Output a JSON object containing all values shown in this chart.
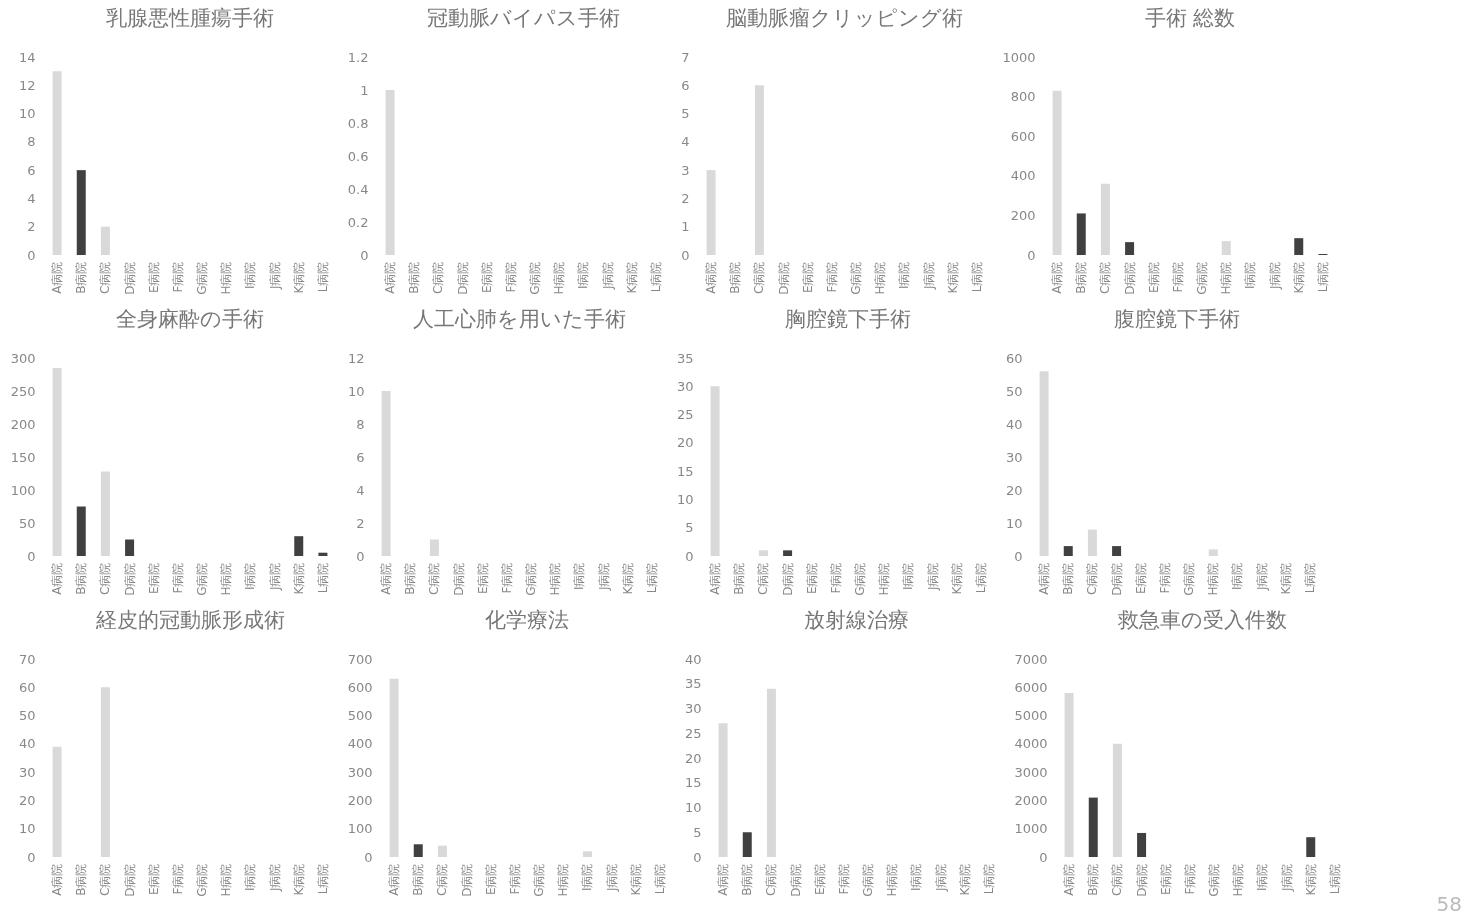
{
  "chart_data": [
    {
      "type": "bar",
      "title": "乳腺悪性腫瘍手術",
      "categories": [
        "A病院",
        "B病院",
        "C病院",
        "D病院",
        "E病院",
        "F病院",
        "G病院",
        "H病院",
        "I病院",
        "J病院",
        "K病院",
        "L病院"
      ],
      "values": [
        13,
        6,
        2,
        0,
        0,
        0,
        0,
        0,
        0,
        0,
        0,
        0
      ],
      "colors": [
        "#d9d9d9",
        "#404040",
        "#d9d9d9",
        "#404040",
        "#d9d9d9",
        "#d9d9d9",
        "#d9d9d9",
        "#d9d9d9",
        "#d9d9d9",
        "#d9d9d9",
        "#404040",
        "#404040"
      ],
      "ylim": [
        0,
        14
      ],
      "yticks": [
        0,
        2,
        4,
        6,
        8,
        10,
        12,
        14
      ]
    },
    {
      "type": "bar",
      "title": "冠動脈バイパス手術",
      "categories": [
        "A病院",
        "B病院",
        "C病院",
        "D病院",
        "E病院",
        "F病院",
        "G病院",
        "H病院",
        "I病院",
        "J病院",
        "K病院",
        "L病院"
      ],
      "values": [
        1,
        0,
        0,
        0,
        0,
        0,
        0,
        0,
        0,
        0,
        0,
        0
      ],
      "colors": [
        "#d9d9d9",
        "#404040",
        "#d9d9d9",
        "#404040",
        "#d9d9d9",
        "#d9d9d9",
        "#d9d9d9",
        "#d9d9d9",
        "#d9d9d9",
        "#d9d9d9",
        "#404040",
        "#404040"
      ],
      "ylim": [
        0,
        1.2
      ],
      "yticks": [
        0,
        0.2,
        0.4,
        0.6,
        0.8,
        1,
        1.2
      ]
    },
    {
      "type": "bar",
      "title": "脳動脈瘤クリッピング術",
      "categories": [
        "A病院",
        "B病院",
        "C病院",
        "D病院",
        "E病院",
        "F病院",
        "G病院",
        "H病院",
        "I病院",
        "J病院",
        "K病院",
        "L病院"
      ],
      "values": [
        3,
        0,
        6,
        0,
        0,
        0,
        0,
        0,
        0,
        0,
        0,
        0
      ],
      "colors": [
        "#d9d9d9",
        "#404040",
        "#d9d9d9",
        "#404040",
        "#d9d9d9",
        "#d9d9d9",
        "#d9d9d9",
        "#d9d9d9",
        "#d9d9d9",
        "#d9d9d9",
        "#404040",
        "#404040"
      ],
      "ylim": [
        0,
        7
      ],
      "yticks": [
        0,
        1,
        2,
        3,
        4,
        5,
        6,
        7
      ]
    },
    {
      "type": "bar",
      "title": "手術 総数",
      "categories": [
        "A病院",
        "B病院",
        "C病院",
        "D病院",
        "E病院",
        "F病院",
        "G病院",
        "H病院",
        "I病院",
        "J病院",
        "K病院",
        "L病院"
      ],
      "values": [
        830,
        210,
        360,
        65,
        0,
        0,
        0,
        70,
        0,
        0,
        85,
        5
      ],
      "colors": [
        "#d9d9d9",
        "#404040",
        "#d9d9d9",
        "#404040",
        "#d9d9d9",
        "#d9d9d9",
        "#d9d9d9",
        "#d9d9d9",
        "#d9d9d9",
        "#d9d9d9",
        "#404040",
        "#404040"
      ],
      "ylim": [
        0,
        1000
      ],
      "yticks": [
        0,
        200,
        400,
        600,
        800,
        1000
      ]
    },
    {
      "type": "bar",
      "title": "全身麻酔の手術",
      "categories": [
        "A病院",
        "B病院",
        "C病院",
        "D病院",
        "E病院",
        "F病院",
        "G病院",
        "H病院",
        "I病院",
        "J病院",
        "K病院",
        "L病院"
      ],
      "values": [
        285,
        75,
        128,
        25,
        0,
        0,
        0,
        0,
        0,
        0,
        30,
        5
      ],
      "colors": [
        "#d9d9d9",
        "#404040",
        "#d9d9d9",
        "#404040",
        "#d9d9d9",
        "#d9d9d9",
        "#d9d9d9",
        "#d9d9d9",
        "#d9d9d9",
        "#d9d9d9",
        "#404040",
        "#404040"
      ],
      "ylim": [
        0,
        300
      ],
      "yticks": [
        0,
        50,
        100,
        150,
        200,
        250,
        300
      ]
    },
    {
      "type": "bar",
      "title": "人工心肺を用いた手術",
      "categories": [
        "A病院",
        "B病院",
        "C病院",
        "D病院",
        "E病院",
        "F病院",
        "G病院",
        "H病院",
        "I病院",
        "J病院",
        "K病院",
        "L病院"
      ],
      "values": [
        10,
        0,
        1,
        0,
        0,
        0,
        0,
        0,
        0,
        0,
        0,
        0
      ],
      "colors": [
        "#d9d9d9",
        "#404040",
        "#d9d9d9",
        "#404040",
        "#d9d9d9",
        "#d9d9d9",
        "#d9d9d9",
        "#d9d9d9",
        "#d9d9d9",
        "#d9d9d9",
        "#404040",
        "#404040"
      ],
      "ylim": [
        0,
        12
      ],
      "yticks": [
        0,
        2,
        4,
        6,
        8,
        10,
        12
      ]
    },
    {
      "type": "bar",
      "title": "胸腔鏡下手術",
      "categories": [
        "A病院",
        "B病院",
        "C病院",
        "D病院",
        "E病院",
        "F病院",
        "G病院",
        "H病院",
        "I病院",
        "J病院",
        "K病院",
        "L病院"
      ],
      "values": [
        30,
        0,
        1,
        1,
        0,
        0,
        0,
        0,
        0,
        0,
        0,
        0
      ],
      "colors": [
        "#d9d9d9",
        "#404040",
        "#d9d9d9",
        "#404040",
        "#d9d9d9",
        "#d9d9d9",
        "#d9d9d9",
        "#d9d9d9",
        "#d9d9d9",
        "#d9d9d9",
        "#404040",
        "#404040"
      ],
      "ylim": [
        0,
        35
      ],
      "yticks": [
        0,
        5,
        10,
        15,
        20,
        25,
        30,
        35
      ]
    },
    {
      "type": "bar",
      "title": "腹腔鏡下手術",
      "categories": [
        "A病院",
        "B病院",
        "C病院",
        "D病院",
        "E病院",
        "F病院",
        "G病院",
        "H病院",
        "I病院",
        "J病院",
        "K病院",
        "L病院"
      ],
      "values": [
        56,
        3,
        8,
        3,
        0,
        0,
        0,
        2,
        0,
        0,
        0,
        0
      ],
      "colors": [
        "#d9d9d9",
        "#404040",
        "#d9d9d9",
        "#404040",
        "#d9d9d9",
        "#d9d9d9",
        "#d9d9d9",
        "#d9d9d9",
        "#d9d9d9",
        "#d9d9d9",
        "#404040",
        "#404040"
      ],
      "ylim": [
        0,
        60
      ],
      "yticks": [
        0,
        10,
        20,
        30,
        40,
        50,
        60
      ]
    },
    {
      "type": "bar",
      "title": "経皮的冠動脈形成術",
      "categories": [
        "A病院",
        "B病院",
        "C病院",
        "D病院",
        "E病院",
        "F病院",
        "G病院",
        "H病院",
        "I病院",
        "J病院",
        "K病院",
        "L病院"
      ],
      "values": [
        39,
        0,
        60,
        0,
        0,
        0,
        0,
        0,
        0,
        0,
        0,
        0
      ],
      "colors": [
        "#d9d9d9",
        "#404040",
        "#d9d9d9",
        "#404040",
        "#d9d9d9",
        "#d9d9d9",
        "#d9d9d9",
        "#d9d9d9",
        "#d9d9d9",
        "#d9d9d9",
        "#404040",
        "#404040"
      ],
      "ylim": [
        0,
        70
      ],
      "yticks": [
        0,
        10,
        20,
        30,
        40,
        50,
        60,
        70
      ]
    },
    {
      "type": "bar",
      "title": "化学療法",
      "categories": [
        "A病院",
        "B病院",
        "C病院",
        "D病院",
        "E病院",
        "F病院",
        "G病院",
        "H病院",
        "I病院",
        "J病院",
        "K病院",
        "L病院"
      ],
      "values": [
        630,
        45,
        40,
        0,
        0,
        0,
        0,
        0,
        20,
        0,
        0,
        0
      ],
      "colors": [
        "#d9d9d9",
        "#404040",
        "#d9d9d9",
        "#404040",
        "#d9d9d9",
        "#d9d9d9",
        "#d9d9d9",
        "#d9d9d9",
        "#d9d9d9",
        "#d9d9d9",
        "#404040",
        "#404040"
      ],
      "ylim": [
        0,
        700
      ],
      "yticks": [
        0,
        100,
        200,
        300,
        400,
        500,
        600,
        700
      ]
    },
    {
      "type": "bar",
      "title": "放射線治療",
      "categories": [
        "A病院",
        "B病院",
        "C病院",
        "D病院",
        "E病院",
        "F病院",
        "G病院",
        "H病院",
        "I病院",
        "J病院",
        "K病院",
        "L病院"
      ],
      "values": [
        27,
        5,
        34,
        0,
        0,
        0,
        0,
        0,
        0,
        0,
        0,
        0
      ],
      "colors": [
        "#d9d9d9",
        "#404040",
        "#d9d9d9",
        "#404040",
        "#d9d9d9",
        "#d9d9d9",
        "#d9d9d9",
        "#d9d9d9",
        "#d9d9d9",
        "#d9d9d9",
        "#404040",
        "#404040"
      ],
      "ylim": [
        0,
        40
      ],
      "yticks": [
        0,
        5,
        10,
        15,
        20,
        25,
        30,
        35,
        40
      ]
    },
    {
      "type": "bar",
      "title": "救急車の受入件数",
      "categories": [
        "A病院",
        "B病院",
        "C病院",
        "D病院",
        "E病院",
        "F病院",
        "G病院",
        "H病院",
        "I病院",
        "J病院",
        "K病院",
        "L病院"
      ],
      "values": [
        5800,
        2100,
        4000,
        850,
        0,
        0,
        0,
        0,
        0,
        0,
        700,
        0
      ],
      "colors": [
        "#d9d9d9",
        "#404040",
        "#d9d9d9",
        "#404040",
        "#d9d9d9",
        "#d9d9d9",
        "#d9d9d9",
        "#d9d9d9",
        "#d9d9d9",
        "#d9d9d9",
        "#404040",
        "#404040"
      ],
      "ylim": [
        0,
        7000
      ],
      "yticks": [
        0,
        1000,
        2000,
        3000,
        4000,
        5000,
        6000,
        7000
      ],
      "annotations": [
        "58"
      ]
    }
  ]
}
